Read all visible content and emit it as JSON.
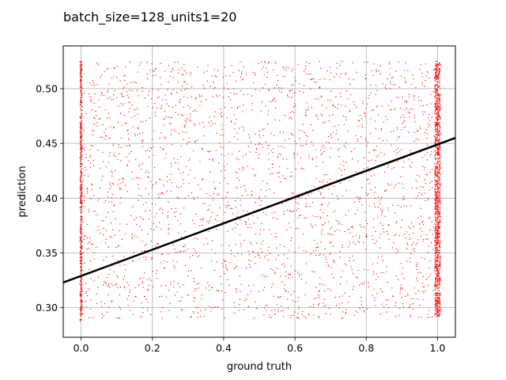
{
  "chart_data": {
    "type": "scatter",
    "title": "batch_size=128_units1=20",
    "xlabel": "ground truth",
    "ylabel": "prediction",
    "xlim": [
      -0.05,
      1.05
    ],
    "ylim": [
      0.273,
      0.539
    ],
    "xticks": [
      "0.0",
      "0.2",
      "0.4",
      "0.6",
      "0.8",
      "1.0"
    ],
    "yticks": [
      "0.30",
      "0.35",
      "0.40",
      "0.45",
      "0.50"
    ],
    "grid": true,
    "point_color": "#ff0000",
    "fit_line_color": "#000000",
    "fit_line": {
      "intercept": 0.329,
      "slope": 0.12
    },
    "scatter_summary": {
      "x_min": 0.0,
      "x_max": 1.0,
      "y_min": 0.288,
      "y_max": 0.525,
      "dense_columns_at_x": [
        0.0,
        1.0
      ]
    }
  }
}
